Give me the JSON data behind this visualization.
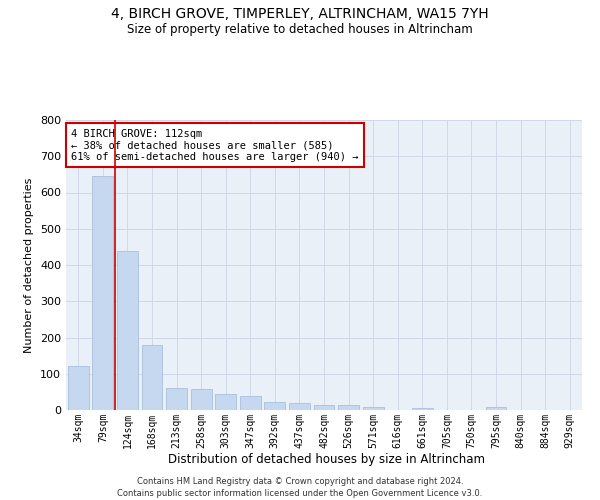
{
  "title": "4, BIRCH GROVE, TIMPERLEY, ALTRINCHAM, WA15 7YH",
  "subtitle": "Size of property relative to detached houses in Altrincham",
  "xlabel": "Distribution of detached houses by size in Altrincham",
  "ylabel": "Number of detached properties",
  "categories": [
    "34sqm",
    "79sqm",
    "124sqm",
    "168sqm",
    "213sqm",
    "258sqm",
    "303sqm",
    "347sqm",
    "392sqm",
    "437sqm",
    "482sqm",
    "526sqm",
    "571sqm",
    "616sqm",
    "661sqm",
    "705sqm",
    "750sqm",
    "795sqm",
    "840sqm",
    "884sqm",
    "929sqm"
  ],
  "values": [
    122,
    645,
    440,
    178,
    60,
    58,
    43,
    40,
    22,
    20,
    13,
    13,
    8,
    0,
    5,
    0,
    0,
    8,
    0,
    0,
    0
  ],
  "bar_color": "#c5d8f0",
  "bar_edge_color": "#a0b8d8",
  "red_line_x": 1.5,
  "annotation_text": "4 BIRCH GROVE: 112sqm\n← 38% of detached houses are smaller (585)\n61% of semi-detached houses are larger (940) →",
  "annotation_box_color": "#ffffff",
  "annotation_box_edge": "#cc0000",
  "red_line_color": "#cc0000",
  "grid_color": "#d0d8e8",
  "background_color": "#eaf0f8",
  "footer_line1": "Contains HM Land Registry data © Crown copyright and database right 2024.",
  "footer_line2": "Contains public sector information licensed under the Open Government Licence v3.0.",
  "ylim": [
    0,
    800
  ],
  "yticks": [
    0,
    100,
    200,
    300,
    400,
    500,
    600,
    700,
    800
  ]
}
